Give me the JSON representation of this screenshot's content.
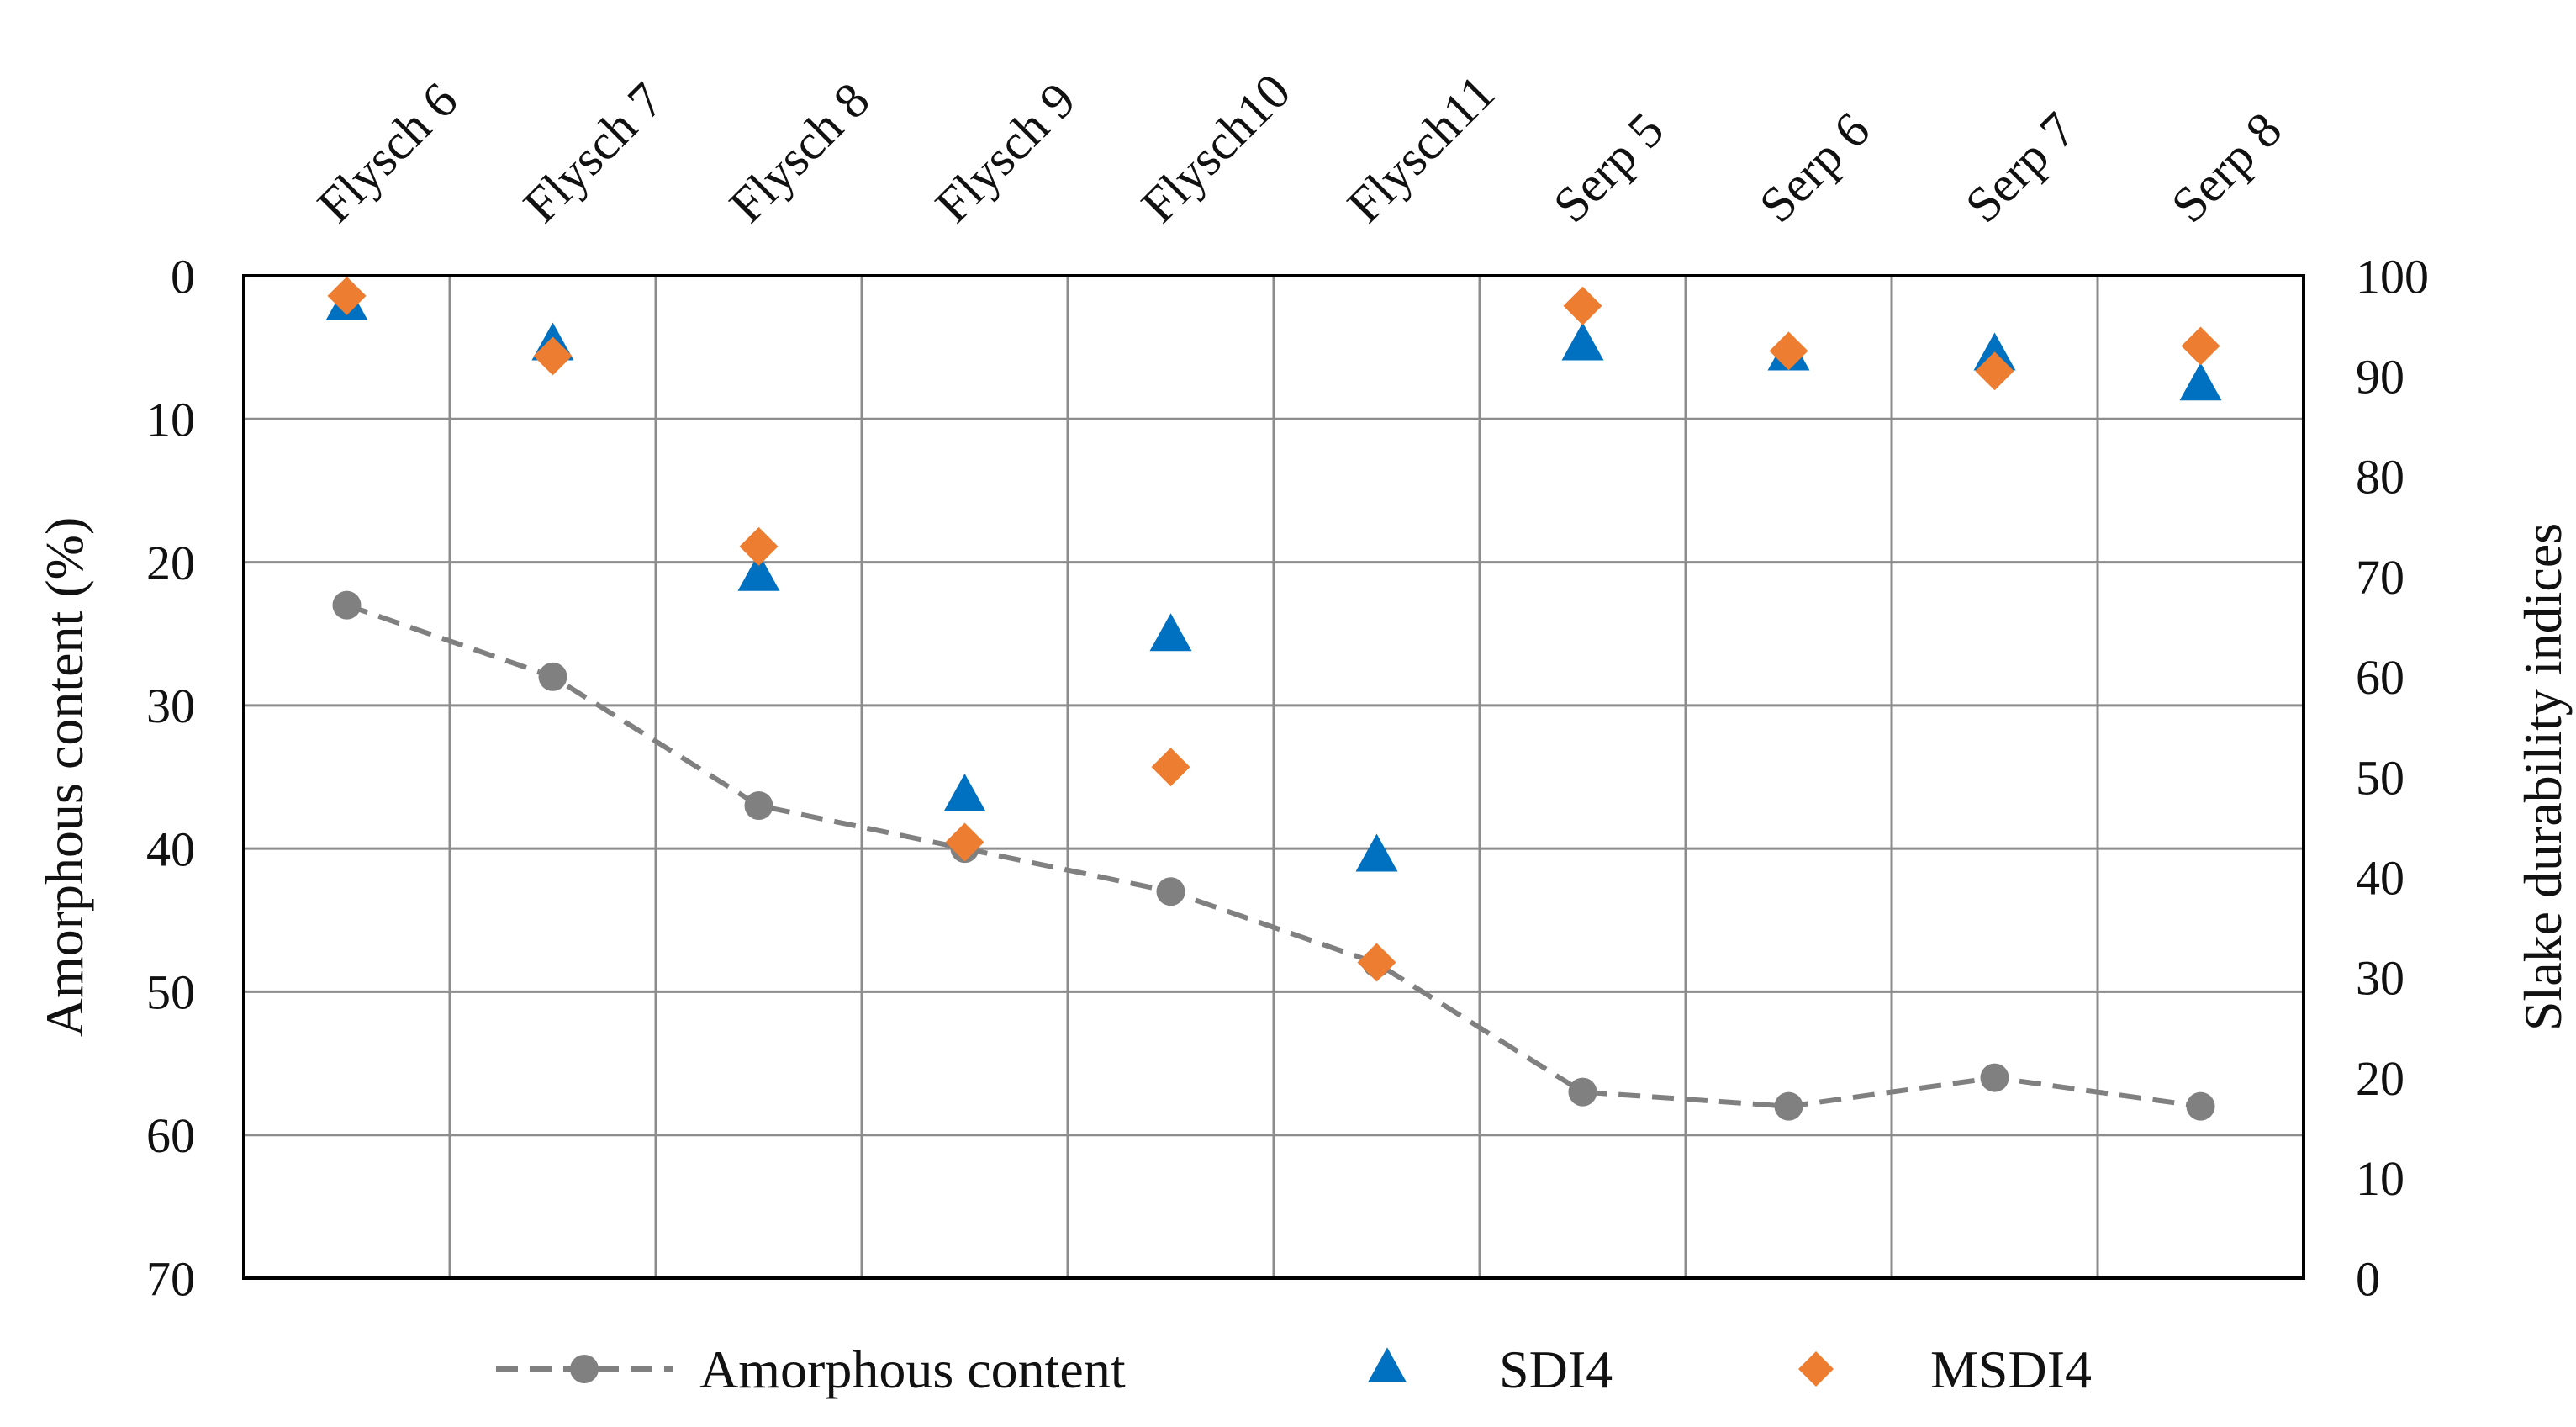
{
  "chart_data": {
    "type": "scatter",
    "categories": [
      "Flysch 6",
      "Flysch 7",
      "Flysch 8",
      "Flysch 9",
      "Flysch10",
      "Flysch11",
      "Serp 5",
      "Serp 6",
      "Serp 7",
      "Serp 8"
    ],
    "left_axis": {
      "label": "Amorphous content (%)",
      "range": [
        0,
        70
      ],
      "inverted": true,
      "ticks": [
        "0",
        "10",
        "20",
        "30",
        "40",
        "50",
        "60",
        "70"
      ]
    },
    "right_axis": {
      "label": "Slake durability indices",
      "range": [
        0,
        100
      ],
      "ticks": [
        "0",
        "10",
        "20",
        "30",
        "40",
        "50",
        "60",
        "70",
        "80",
        "90",
        "100"
      ]
    },
    "grid": true,
    "legend_position": "bottom",
    "series": [
      {
        "name": "Amorphous content",
        "axis": "left",
        "style": "dashed-line-circle",
        "color": "#808080",
        "values": [
          23,
          28,
          37,
          40,
          43,
          48,
          57,
          58,
          56,
          58
        ]
      },
      {
        "name": "SDI4",
        "axis": "right",
        "style": "triangle",
        "color": "#0070C0",
        "values": [
          97,
          93,
          70,
          48,
          64,
          42,
          93,
          92,
          92,
          89
        ]
      },
      {
        "name": "MSDI4",
        "axis": "right",
        "style": "diamond",
        "color": "#ED7D31",
        "values": [
          98,
          92,
          73,
          43.5,
          51,
          31.5,
          97,
          92.5,
          90.5,
          93
        ]
      }
    ]
  }
}
